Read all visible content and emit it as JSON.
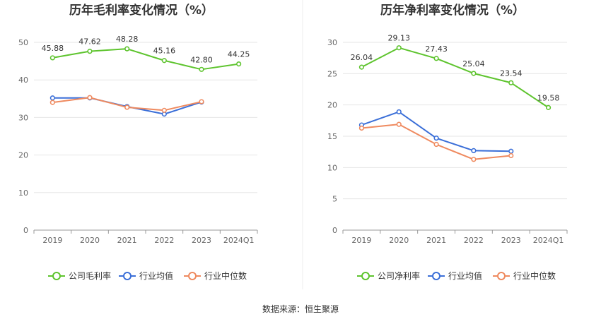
{
  "source_text": "数据来源：恒生聚源",
  "colors": {
    "company": "#5ec42e",
    "industry_avg": "#3b6fd8",
    "industry_median": "#ef8a5f",
    "grid": "#e6e6e6",
    "axis": "#999999"
  },
  "chart_data": [
    {
      "type": "line",
      "title": "历年毛利率变化情况（%）",
      "categories": [
        "2019",
        "2020",
        "2021",
        "2022",
        "2023",
        "2024Q1"
      ],
      "ylim": [
        0,
        50
      ],
      "yticks": [
        0,
        10,
        20,
        30,
        40,
        50
      ],
      "grid": true,
      "legend_position": "bottom",
      "series": [
        {
          "name": "公司毛利率",
          "color": "#5ec42e",
          "values": [
            45.88,
            47.62,
            48.28,
            45.16,
            42.8,
            44.25
          ],
          "labels": [
            "45.88",
            "47.62",
            "48.28",
            "45.16",
            "42.80",
            "44.25"
          ]
        },
        {
          "name": "行业均值",
          "color": "#3b6fd8",
          "values": [
            35.2,
            35.2,
            32.9,
            30.9,
            34.1,
            null
          ]
        },
        {
          "name": "行业中位数",
          "color": "#ef8a5f",
          "values": [
            34.0,
            35.3,
            32.7,
            31.9,
            34.2,
            null
          ]
        }
      ]
    },
    {
      "type": "line",
      "title": "历年净利率变化情况（%）",
      "categories": [
        "2019",
        "2020",
        "2021",
        "2022",
        "2023",
        "2024Q1"
      ],
      "ylim": [
        0,
        30
      ],
      "yticks": [
        0,
        5,
        10,
        15,
        20,
        25,
        30
      ],
      "grid": true,
      "legend_position": "bottom",
      "series": [
        {
          "name": "公司净利率",
          "color": "#5ec42e",
          "values": [
            26.04,
            29.13,
            27.43,
            25.04,
            23.54,
            19.58
          ],
          "labels": [
            "26.04",
            "29.13",
            "27.43",
            "25.04",
            "23.54",
            "19.58"
          ]
        },
        {
          "name": "行业均值",
          "color": "#3b6fd8",
          "values": [
            16.8,
            18.9,
            14.7,
            12.7,
            12.6,
            null
          ]
        },
        {
          "name": "行业中位数",
          "color": "#ef8a5f",
          "values": [
            16.3,
            16.9,
            13.7,
            11.3,
            11.9,
            null
          ]
        }
      ]
    }
  ]
}
